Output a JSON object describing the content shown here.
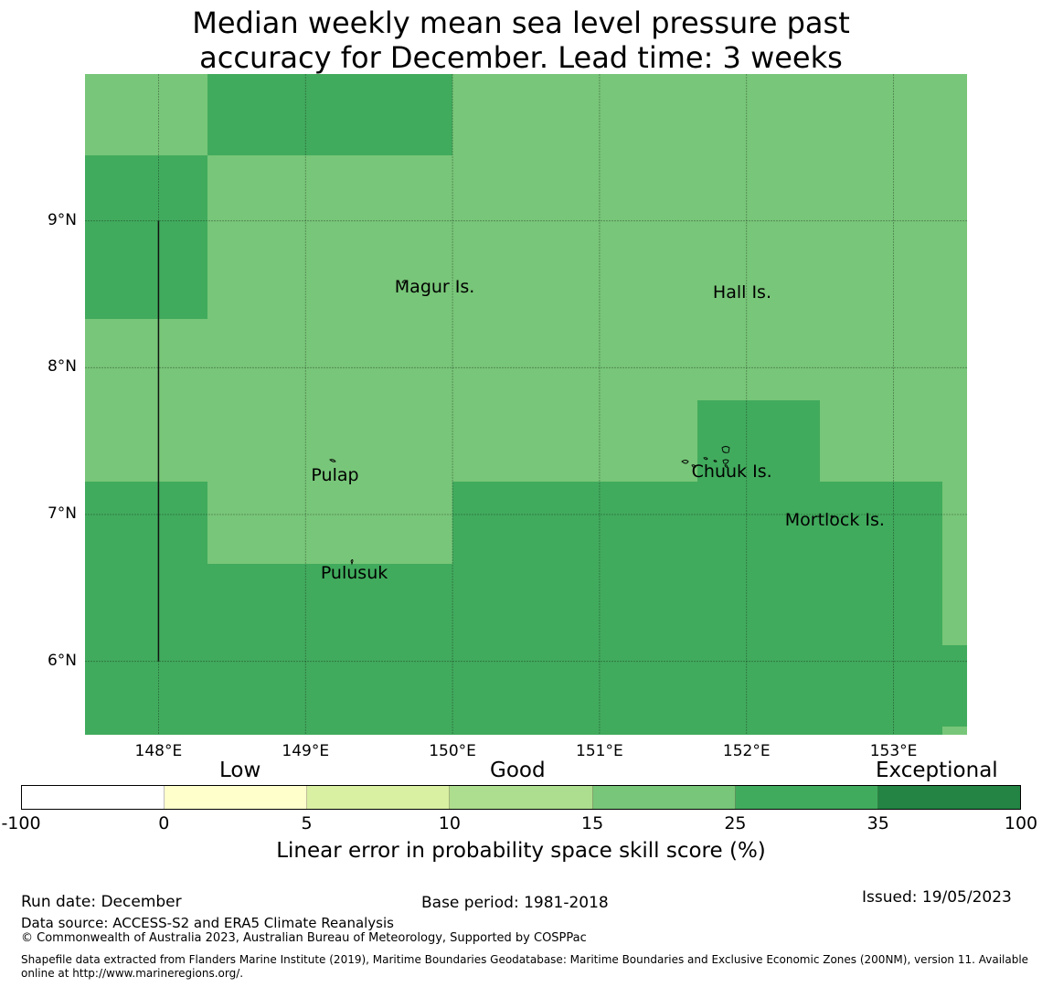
{
  "title": {
    "line1": "Median weekly mean sea level pressure past",
    "line2": "accuracy for December. Lead time: 3 weeks"
  },
  "map": {
    "lon_range": [
      147.5,
      153.5
    ],
    "lat_range": [
      5.5,
      10.0
    ],
    "grid_cells": [
      {
        "lon0": 147.5,
        "lon1": 148.333,
        "lat0": 9.444,
        "lat1": 10.0,
        "cat": 4
      },
      {
        "lon0": 148.333,
        "lon1": 150.0,
        "lat0": 9.444,
        "lat1": 10.0,
        "cat": 5
      },
      {
        "lon0": 150.0,
        "lon1": 153.5,
        "lat0": 9.444,
        "lat1": 10.0,
        "cat": 4
      },
      {
        "lon0": 147.5,
        "lon1": 148.333,
        "lat0": 8.333,
        "lat1": 9.444,
        "cat": 5
      },
      {
        "lon0": 148.333,
        "lon1": 153.5,
        "lat0": 8.333,
        "lat1": 9.444,
        "cat": 4
      },
      {
        "lon0": 147.5,
        "lon1": 153.5,
        "lat0": 7.222,
        "lat1": 8.333,
        "cat": 4
      },
      {
        "lon0": 151.667,
        "lon1": 152.5,
        "lat0": 7.222,
        "lat1": 7.778,
        "cat": 5
      },
      {
        "lon0": 147.5,
        "lon1": 148.333,
        "lat0": 6.667,
        "lat1": 7.222,
        "cat": 5
      },
      {
        "lon0": 148.333,
        "lon1": 150.0,
        "lat0": 6.667,
        "lat1": 7.222,
        "cat": 4
      },
      {
        "lon0": 150.0,
        "lon1": 153.333,
        "lat0": 6.667,
        "lat1": 7.222,
        "cat": 5
      },
      {
        "lon0": 153.333,
        "lon1": 153.5,
        "lat0": 6.667,
        "lat1": 7.222,
        "cat": 4
      },
      {
        "lon0": 147.5,
        "lon1": 153.333,
        "lat0": 5.5,
        "lat1": 6.667,
        "cat": 5
      },
      {
        "lon0": 153.333,
        "lon1": 153.5,
        "lat0": 6.111,
        "lat1": 6.667,
        "cat": 4
      },
      {
        "lon0": 153.333,
        "lon1": 153.5,
        "lat0": 5.556,
        "lat1": 6.111,
        "cat": 5
      },
      {
        "lon0": 153.333,
        "lon1": 153.5,
        "lat0": 5.5,
        "lat1": 5.556,
        "cat": 4
      }
    ],
    "boundary_line": {
      "lon": 148.0,
      "lat0": 6.0,
      "lat1": 9.0
    },
    "lat_ticks": [
      {
        "value": 9,
        "label": "9°N"
      },
      {
        "value": 8,
        "label": "8°N"
      },
      {
        "value": 7,
        "label": "7°N"
      },
      {
        "value": 6,
        "label": "6°N"
      }
    ],
    "lon_ticks": [
      {
        "value": 148,
        "label": "148°E"
      },
      {
        "value": 149,
        "label": "149°E"
      },
      {
        "value": 150,
        "label": "150°E"
      },
      {
        "value": 151,
        "label": "151°E"
      },
      {
        "value": 152,
        "label": "152°E"
      },
      {
        "value": 153,
        "label": "153°E"
      }
    ],
    "places": [
      {
        "name": "Magur Is.",
        "lon": 149.88,
        "lat": 8.55
      },
      {
        "name": "Hall Is.",
        "lon": 151.97,
        "lat": 8.51
      },
      {
        "name": "Pulap",
        "lon": 149.2,
        "lat": 7.27
      },
      {
        "name": "Chuuk Is.",
        "lon": 151.9,
        "lat": 7.29
      },
      {
        "name": "Mortlock Is.",
        "lon": 152.6,
        "lat": 6.96
      },
      {
        "name": "Pulusuk",
        "lon": 149.33,
        "lat": 6.6
      }
    ]
  },
  "colorbar": {
    "categories": [
      "Low",
      "Good",
      "Exceptional"
    ],
    "tick_labels": [
      "-100",
      "0",
      "5",
      "10",
      "15",
      "25",
      "35",
      "100"
    ],
    "colors": [
      "#ffffff",
      "#ffffcc",
      "#d9f0a3",
      "#addd8e",
      "#78c679",
      "#41ab5d",
      "#238443"
    ],
    "label": "Linear error in probability space skill score (%)"
  },
  "footer": {
    "run_date": "Run date: December",
    "base_period": "Base period: 1981-2018",
    "issued": "Issued: 19/05/2023",
    "data_source": "Data source: ACCESS-S2 and ERA5 Climate Reanalysis",
    "copyright": "© Commonwealth of Australia 2023, Australian Bureau of Meteorology, Supported by COSPPac",
    "shapefile_line1": "Shapefile data extracted from Flanders Marine Institute (2019), Maritime Boundaries Geodatabase: Maritime Boundaries and Exclusive Economic Zones (200NM), version 11. Available",
    "shapefile_line2": "online at http://www.marineregions.org/."
  }
}
